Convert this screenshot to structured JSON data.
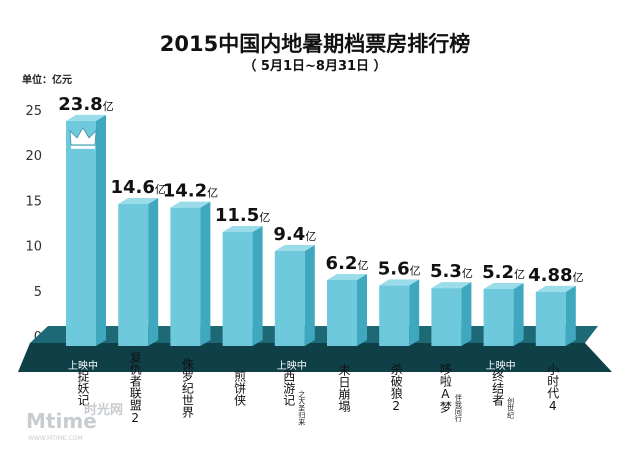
{
  "chart_data": {
    "type": "bar",
    "title": "2015中国内地暑期档票房排行榜",
    "subtitle": "（ 5月1日~8月31日 ）",
    "ylabel": "单位：亿元",
    "ylim": [
      0,
      25
    ],
    "yticks": [
      0,
      5,
      10,
      15,
      20,
      25
    ],
    "value_unit": "亿",
    "bars": [
      {
        "name": "捉妖记",
        "value": 23.8,
        "label": "23.8",
        "status": "上映中",
        "crown": true
      },
      {
        "name": "复仇者联盟2",
        "value": 14.6,
        "label": "14.6"
      },
      {
        "name": "侏罗纪世界",
        "value": 14.2,
        "label": "14.2"
      },
      {
        "name": "煎饼侠",
        "value": 11.5,
        "label": "11.5"
      },
      {
        "name": "西游记",
        "subtitle": "之大圣归来",
        "value": 9.4,
        "label": "9.4",
        "status": "上映中"
      },
      {
        "name": "末日崩塌",
        "value": 6.2,
        "label": "6.2"
      },
      {
        "name": "杀破狼2",
        "value": 5.6,
        "label": "5.6"
      },
      {
        "name": "哆啦A梦",
        "subtitle": "伴我同行",
        "value": 5.3,
        "label": "5.3"
      },
      {
        "name": "终结者",
        "subtitle": "创世纪",
        "value": 5.2,
        "label": "5.2",
        "status": "上映中"
      },
      {
        "name": "小时代4",
        "value": 4.88,
        "label": "4.88"
      }
    ],
    "colors": {
      "bar": "#6ec9dc",
      "bar_side": "#3fa8be",
      "bar_top": "#9adcea",
      "platform": "#0f3f47",
      "platform_top": "#1d6a76"
    }
  },
  "watermark": {
    "logo": "Mtime",
    "cn": "时光网",
    "url": "WWW.MTIME.COM"
  }
}
